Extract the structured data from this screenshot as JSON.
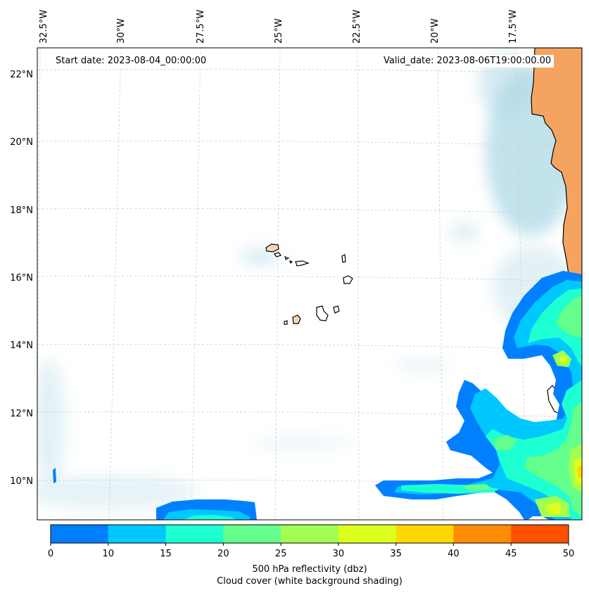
{
  "map": {
    "start_label": "Start date: 2023-08-04_00:00:00",
    "valid_label": "Valid_date: 2023-08-06T19:00:00.00",
    "lon_labels": [
      "32.5°W",
      "30°W",
      "27.5°W",
      "25°W",
      "22.5°W",
      "20°W",
      "17.5°W"
    ],
    "lat_labels": [
      "22°N",
      "20°N",
      "18°N",
      "16°N",
      "14°N",
      "12°N",
      "10°N"
    ],
    "land_color": "#f4a460",
    "island_color": "#f5d5b8",
    "cloud_color": "#add8e6",
    "region": "Cape Verde Islands and West African coast"
  },
  "colorbar": {
    "ticks": [
      "0",
      "10",
      "15",
      "20",
      "25",
      "30",
      "35",
      "40",
      "45",
      "50"
    ],
    "colors": [
      "#0080ff",
      "#00c8ff",
      "#1effd2",
      "#64ff8c",
      "#a0ff50",
      "#dcff1e",
      "#ffd700",
      "#ff8c00",
      "#ff5000"
    ],
    "label": "500 hPa reflectivity (dbz)",
    "sublabel": "Cloud cover (white background shading)"
  }
}
